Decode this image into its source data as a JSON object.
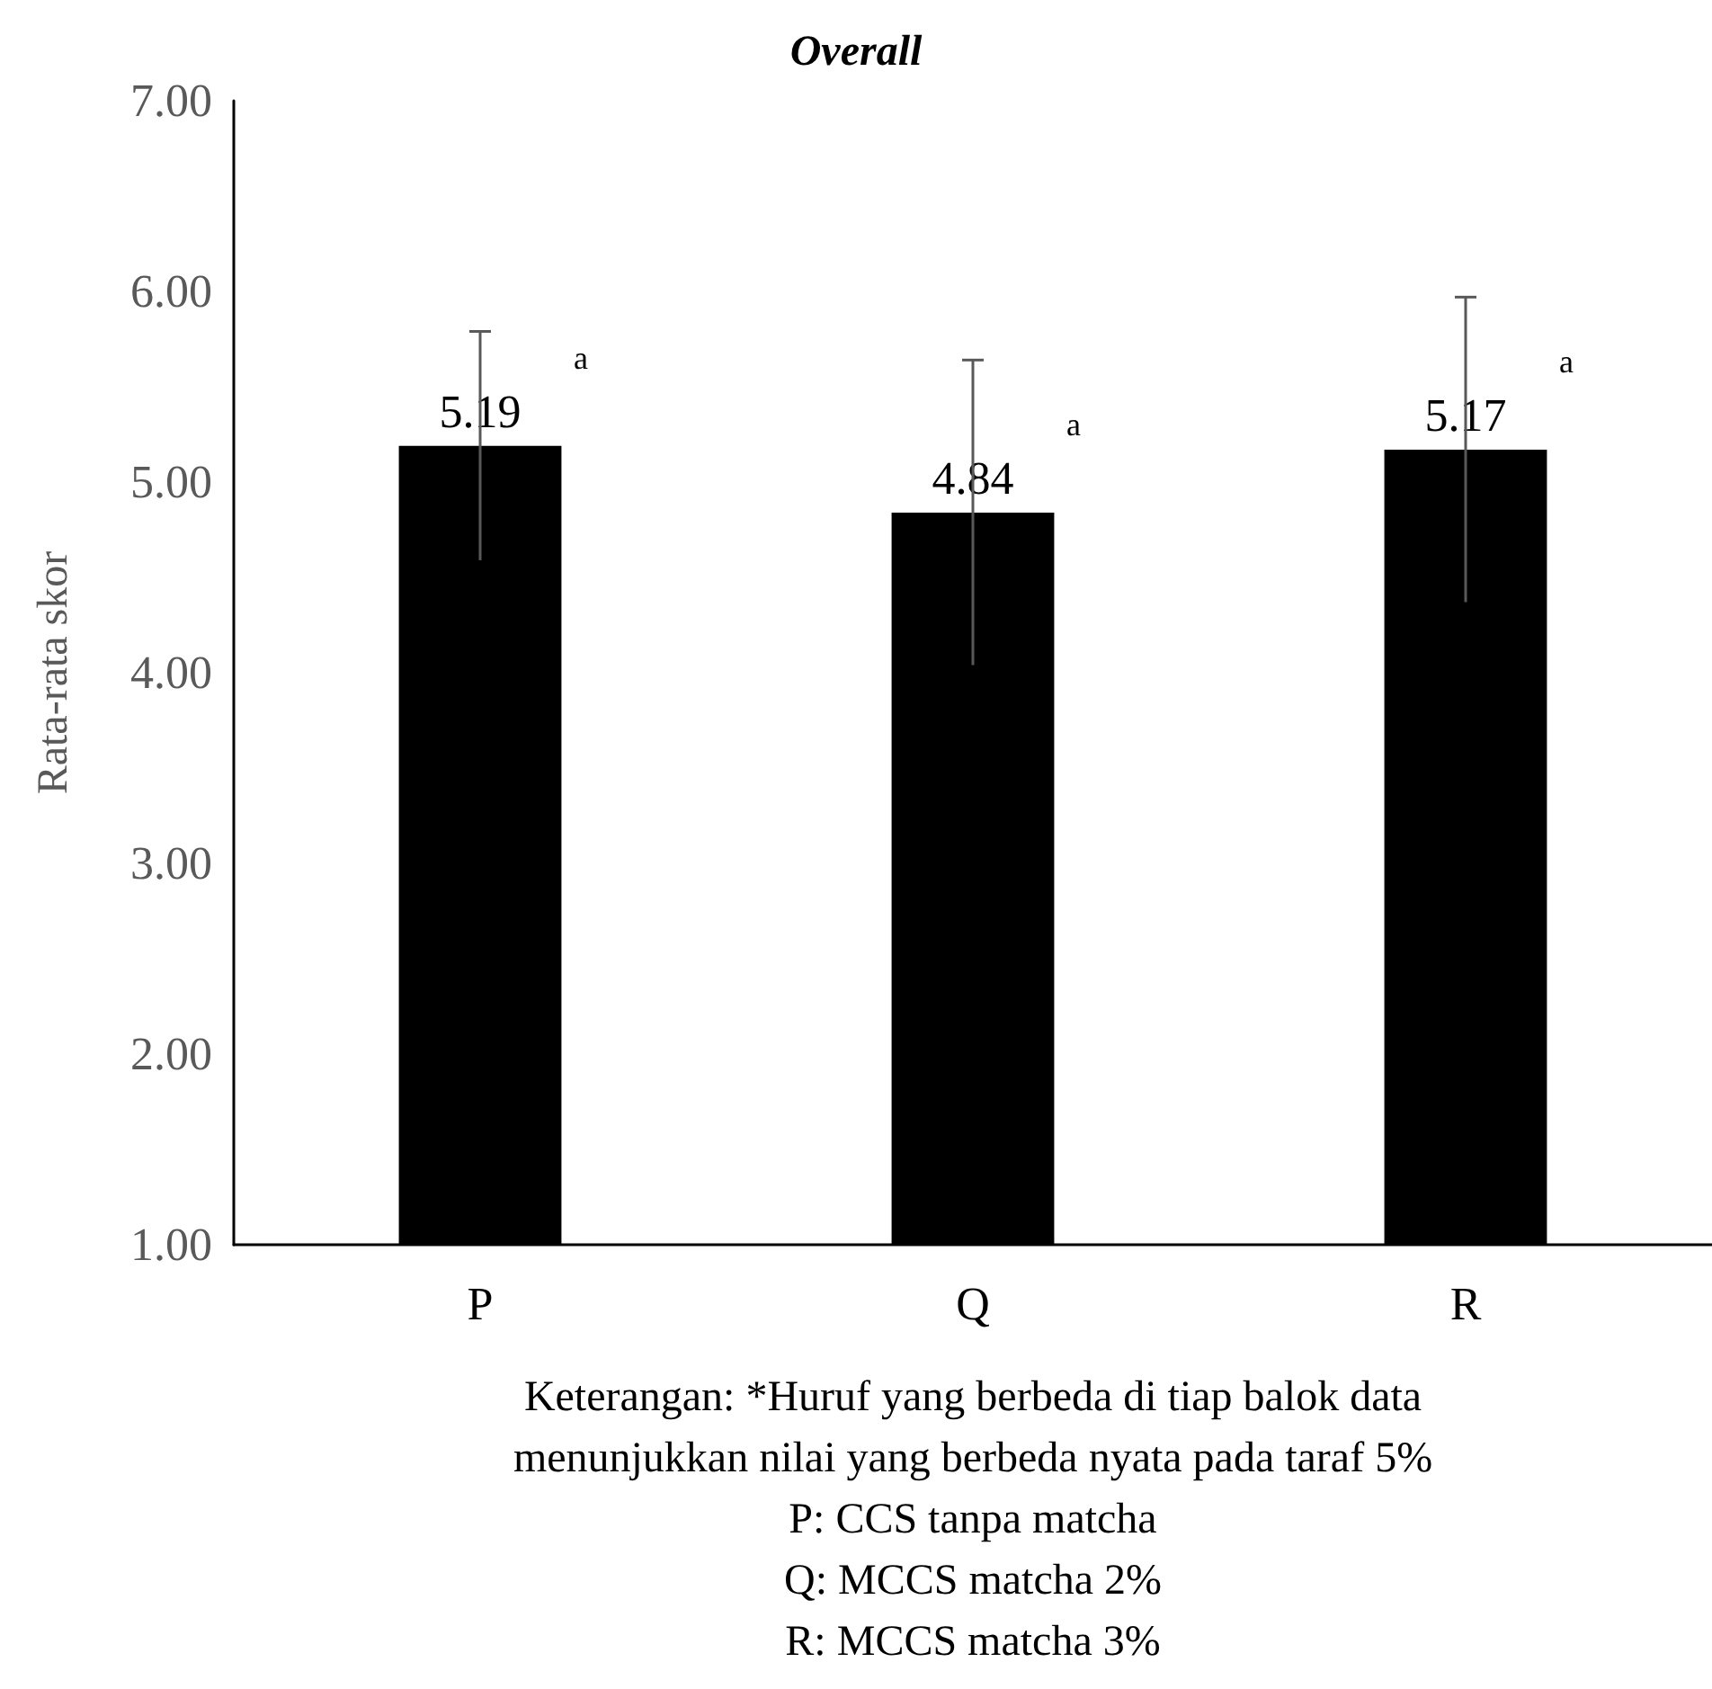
{
  "chart_data": {
    "type": "bar",
    "title": "Overall",
    "ylabel": "Rata-rata skor",
    "categories": [
      "P",
      "Q",
      "R"
    ],
    "values": [
      5.19,
      4.84,
      5.17
    ],
    "errors": [
      0.6,
      0.8,
      0.8
    ],
    "color": "#000000",
    "ylim": [
      1,
      7
    ],
    "yticks": [
      {
        "value": 1,
        "label": "1.00"
      },
      {
        "value": 2,
        "label": "2.00"
      },
      {
        "value": 3,
        "label": "3.00"
      },
      {
        "value": 4,
        "label": "4.00"
      },
      {
        "value": 5,
        "label": "5.00"
      },
      {
        "value": 6,
        "label": "6.00"
      },
      {
        "value": 7,
        "label": "7.00"
      }
    ],
    "grid": false,
    "data_labels": true,
    "annotations": [
      "a",
      "a",
      "a",
      "Keterangan: *Huruf yang berbeda di tiap balok data",
      "menunjukkan nilai yang berbeda nyata pada taraf 5%",
      "P: CCS tanpa matcha",
      "Q: MCCS matcha 2%",
      "R: MCCS matcha 3%"
    ]
  }
}
